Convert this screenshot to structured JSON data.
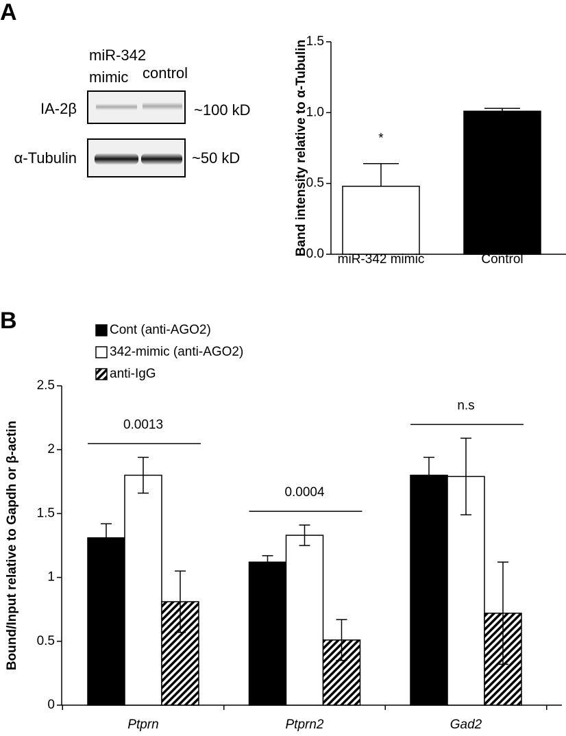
{
  "panels": {
    "a": "A",
    "b": "B"
  },
  "blot": {
    "lanes": [
      {
        "lines": [
          "miR-342",
          "mimic"
        ]
      },
      {
        "lines": [
          "control"
        ]
      }
    ],
    "rows": [
      {
        "name": "IA-2β",
        "size": "~100 kD"
      },
      {
        "name": "α-Tubulin",
        "size": "~50 kD"
      }
    ]
  },
  "chart_data": [
    {
      "type": "bar",
      "ylabel": "Band intensity relative to α-Tubulin",
      "categories": [
        "miR-342 mimic",
        "Control"
      ],
      "values": [
        0.48,
        1.01
      ],
      "errors": [
        0.16,
        0.02
      ],
      "colors": [
        "#ffffff",
        "#000000"
      ],
      "ylim": [
        0,
        1.5
      ],
      "yticks": [
        {
          "value": 0,
          "label": "0.0"
        },
        {
          "value": 0.5,
          "label": "0.5"
        },
        {
          "value": 1,
          "label": "1.0"
        },
        {
          "value": 1.5,
          "label": "1.5"
        }
      ],
      "annotations": [
        {
          "text": "*",
          "category": 0
        }
      ]
    },
    {
      "type": "bar",
      "ylabel": "Bound/Input relative to Gapdh or β-actin",
      "categories": [
        "Ptprn",
        "Ptprn2",
        "Gad2"
      ],
      "series": [
        {
          "name": "Cont (anti-AGO2)",
          "color": "#000000",
          "values": [
            1.31,
            1.12,
            1.8
          ],
          "errors": [
            0.11,
            0.05,
            0.14
          ]
        },
        {
          "name": "342-mimic (anti-AGO2)",
          "color": "#ffffff",
          "values": [
            1.8,
            1.33,
            1.79
          ],
          "errors": [
            0.14,
            0.08,
            0.3
          ]
        },
        {
          "name": "anti-IgG",
          "color": "#000000",
          "hatch": true,
          "values": [
            0.81,
            0.51,
            0.72
          ],
          "errors": [
            0.24,
            0.16,
            0.4
          ]
        }
      ],
      "ylim": [
        0,
        2.5
      ],
      "yticks": [
        0,
        0.5,
        1,
        1.5,
        2,
        2.5
      ],
      "annotations": [
        {
          "text": "0.0013",
          "category": 0
        },
        {
          "text": "0.0004",
          "category": 1
        },
        {
          "text": "n.s",
          "category": 2
        }
      ]
    }
  ]
}
